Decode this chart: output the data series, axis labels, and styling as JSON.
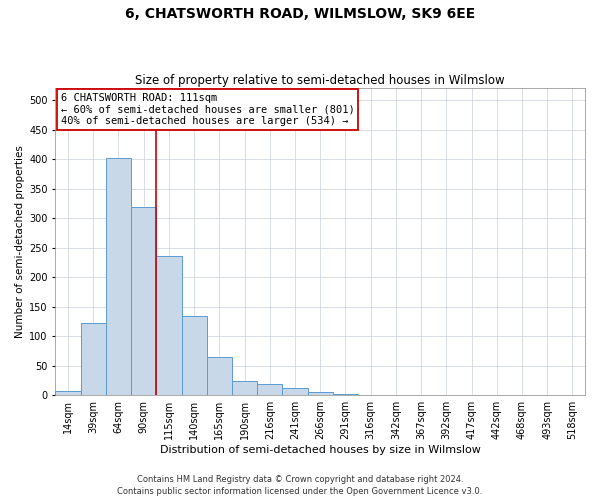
{
  "title": "6, CHATSWORTH ROAD, WILMSLOW, SK9 6EE",
  "subtitle": "Size of property relative to semi-detached houses in Wilmslow",
  "xlabel": "Distribution of semi-detached houses by size in Wilmslow",
  "ylabel": "Number of semi-detached properties",
  "footer1": "Contains HM Land Registry data © Crown copyright and database right 2024.",
  "footer2": "Contains public sector information licensed under the Open Government Licence v3.0.",
  "property_label": "6 CHATSWORTH ROAD: 111sqm",
  "smaller_text": "← 60% of semi-detached houses are smaller (801)",
  "larger_text": "40% of semi-detached houses are larger (534) →",
  "bar_color": "#c8d8e8",
  "bar_edge_color": "#5b9bd5",
  "vline_color": "#cc0000",
  "annotation_box_edge_color": "#cc0000",
  "categories": [
    "14sqm",
    "39sqm",
    "64sqm",
    "90sqm",
    "115sqm",
    "140sqm",
    "165sqm",
    "190sqm",
    "216sqm",
    "241sqm",
    "266sqm",
    "291sqm",
    "316sqm",
    "342sqm",
    "367sqm",
    "392sqm",
    "417sqm",
    "442sqm",
    "468sqm",
    "493sqm",
    "518sqm"
  ],
  "values": [
    7,
    123,
    401,
    318,
    236,
    135,
    65,
    25,
    20,
    12,
    6,
    2,
    0,
    0,
    1,
    0,
    0,
    0,
    0,
    0,
    0
  ],
  "ylim": [
    0,
    520
  ],
  "yticks": [
    0,
    50,
    100,
    150,
    200,
    250,
    300,
    350,
    400,
    450,
    500
  ],
  "vline_x_index": 3,
  "grid_color": "#c8d0d8",
  "bg_color": "#ffffff",
  "title_fontsize": 10,
  "subtitle_fontsize": 8.5,
  "xlabel_fontsize": 8,
  "ylabel_fontsize": 7.5,
  "tick_fontsize": 7,
  "annot_fontsize": 7.5,
  "footer_fontsize": 6
}
